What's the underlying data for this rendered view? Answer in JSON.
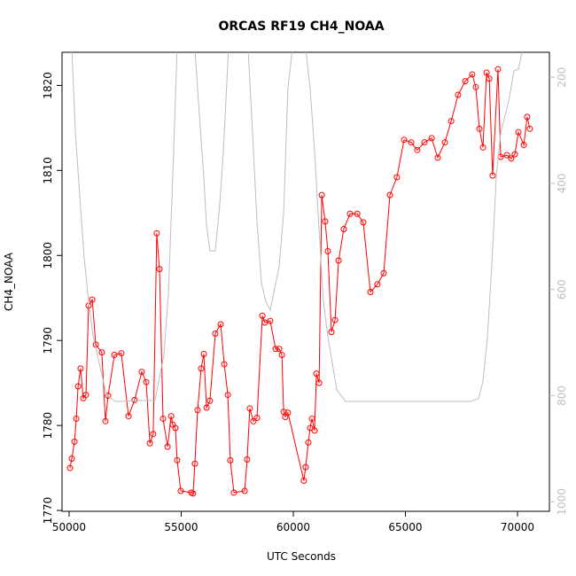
{
  "chart_data": {
    "type": "line",
    "title": "ORCAS RF19 CH4_NOAA",
    "x_label": "UTC Seconds",
    "y_label": "CH4_NOAA",
    "xlim": [
      49684,
      71423
    ],
    "xticks": [
      50000,
      55000,
      60000,
      65000,
      70000
    ],
    "ylim": [
      1769.9,
      1823.9
    ],
    "yticks": [
      1770,
      1780,
      1790,
      1800,
      1810,
      1820
    ],
    "y2lim": [
      1018,
      153
    ],
    "y2ticks": [
      200,
      400,
      600,
      800,
      1000
    ],
    "series": [
      {
        "color": "#ff0000",
        "markers": true,
        "axis": "y",
        "x": [
          50040,
          50120,
          50240,
          50320,
          50400,
          50510,
          50630,
          50750,
          50870,
          51030,
          51190,
          51460,
          51620,
          51740,
          52020,
          52330,
          52650,
          52920,
          53240,
          53440,
          53600,
          53750,
          53910,
          54030,
          54190,
          54390,
          54550,
          54620,
          54740,
          54820,
          54980,
          55450,
          55530,
          55610,
          55730,
          55890,
          56010,
          56130,
          56280,
          56520,
          56760,
          56920,
          57080,
          57190,
          57350,
          57830,
          57940,
          58060,
          58220,
          58380,
          58620,
          58730,
          58970,
          59210,
          59370,
          59490,
          59570,
          59640,
          59760,
          60470,
          60550,
          60670,
          60750,
          60830,
          60950,
          61030,
          61150,
          61270,
          61420,
          61540,
          61700,
          61860,
          62020,
          62250,
          62530,
          62850,
          63120,
          63440,
          63750,
          64030,
          64310,
          64620,
          64940,
          65260,
          65530,
          65850,
          66170,
          66440,
          66760,
          67040,
          67350,
          67670,
          67980,
          68140,
          68300,
          68460,
          68620,
          68740,
          68890,
          69130,
          69250,
          69530,
          69720,
          69880,
          70040,
          70280,
          70430,
          70550
        ],
        "values": [
          1775,
          1776.1,
          1778.1,
          1780.8,
          1784.6,
          1786.7,
          1783.2,
          1783.6,
          1794.1,
          1794.8,
          1789.5,
          1788.6,
          1780.5,
          1783.5,
          1788.3,
          1788.5,
          1781.1,
          1783,
          1786.3,
          1785.1,
          1777.9,
          1779,
          1802.6,
          1798.4,
          1780.8,
          1777.5,
          1781.1,
          1780.1,
          1779.7,
          1775.9,
          1772.3,
          1772.1,
          1772,
          1775.5,
          1781.8,
          1786.7,
          1788.4,
          1782.1,
          1782.9,
          1790.8,
          1791.9,
          1787.2,
          1783.6,
          1775.9,
          1772.1,
          1772.3,
          1776,
          1782,
          1780.5,
          1780.9,
          1792.9,
          1792.1,
          1792.3,
          1789,
          1789,
          1788.3,
          1781.6,
          1781,
          1781.5,
          1773.5,
          1775.1,
          1778,
          1779.7,
          1780.8,
          1779.4,
          1786.1,
          1785,
          1807.1,
          1804,
          1800.5,
          1791,
          1792.4,
          1799.4,
          1803.1,
          1804.9,
          1804.9,
          1803.9,
          1795.7,
          1796.6,
          1797.9,
          1807.1,
          1809.2,
          1813.6,
          1813.3,
          1812.4,
          1813.3,
          1813.8,
          1811.5,
          1813.3,
          1815.8,
          1818.9,
          1820.5,
          1821.3,
          1819.8,
          1814.9,
          1812.7,
          1821.5,
          1820.8,
          1809.4,
          1821.9,
          1811.6,
          1811.8,
          1811.4,
          1811.9,
          1814.5,
          1813,
          1816.3,
          1814.9
        ]
      },
      {
        "color": "#bebebe",
        "markers": false,
        "axis": "y2",
        "x": [
          50120,
          50280,
          50470,
          50670,
          50870,
          51070,
          51260,
          51660,
          52060,
          53830,
          54230,
          54430,
          54620,
          54820,
          55610,
          55810,
          56010,
          56130,
          56280,
          56520,
          56720,
          56880,
          57110,
          57980,
          58180,
          58380,
          58580,
          58770,
          58970,
          59370,
          59570,
          59760,
          59960,
          60550,
          60750,
          60950,
          61150,
          61340,
          61540,
          61740,
          61940,
          62330,
          67870,
          68260,
          68460,
          68660,
          68850,
          69050,
          69250,
          69450,
          69640,
          69840,
          70040,
          70240
        ],
        "values": [
          145,
          305,
          422,
          539,
          622,
          689,
          723,
          798,
          811,
          809,
          723,
          606,
          389,
          145,
          145,
          272,
          389,
          480,
          527,
          527,
          439,
          339,
          145,
          145,
          305,
          472,
          589,
          622,
          639,
          556,
          455,
          222,
          145,
          145,
          222,
          339,
          489,
          622,
          689,
          739,
          789,
          811,
          811,
          806,
          773,
          689,
          556,
          389,
          305,
          272,
          238,
          188,
          185,
          145
        ]
      }
    ]
  }
}
